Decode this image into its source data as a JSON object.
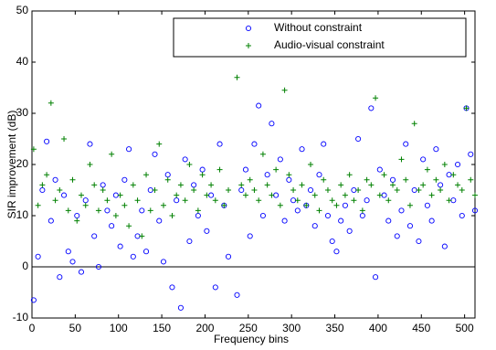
{
  "chart_data": {
    "type": "scatter",
    "x_label": "Frequency bins",
    "y_label": "SIR improvement (dB)",
    "x": [
      2,
      7,
      12,
      17,
      22,
      27,
      32,
      37,
      42,
      47,
      52,
      57,
      62,
      67,
      72,
      77,
      82,
      87,
      92,
      97,
      102,
      107,
      112,
      117,
      122,
      127,
      132,
      137,
      142,
      147,
      152,
      157,
      162,
      167,
      172,
      177,
      182,
      187,
      192,
      197,
      202,
      207,
      212,
      217,
      222,
      227,
      232,
      237,
      242,
      247,
      252,
      257,
      262,
      267,
      272,
      277,
      282,
      287,
      292,
      297,
      302,
      307,
      312,
      317,
      322,
      327,
      332,
      337,
      342,
      347,
      352,
      357,
      362,
      367,
      372,
      377,
      382,
      387,
      392,
      397,
      402,
      407,
      412,
      417,
      422,
      427,
      432,
      437,
      442,
      447,
      452,
      457,
      462,
      467,
      472,
      477,
      482,
      487,
      492,
      497,
      502,
      507,
      512
    ],
    "series": [
      {
        "name": "Without constraint",
        "color": "#0000ff",
        "marker": "circle",
        "values": [
          -6.5,
          2,
          15,
          24.5,
          9,
          17,
          -2,
          14,
          3,
          1,
          10,
          -1,
          13,
          24,
          6,
          0,
          16,
          11,
          8,
          14,
          4,
          17,
          23,
          2,
          6,
          11,
          3,
          15,
          22,
          9,
          1,
          18,
          -4,
          13,
          -8,
          21,
          5,
          16,
          10,
          19,
          7,
          14,
          -4,
          24,
          12,
          2,
          46,
          -5.5,
          15,
          19,
          6,
          24,
          31.5,
          10,
          18,
          28,
          14,
          21,
          9,
          17,
          13,
          11,
          23,
          12,
          15,
          8,
          18,
          24,
          10,
          5,
          3,
          9,
          12,
          7,
          15,
          25,
          10,
          13,
          31,
          -2,
          19,
          14,
          9,
          17,
          6,
          11,
          24,
          8,
          15,
          5,
          21,
          12,
          9,
          23,
          16,
          4,
          18,
          13,
          20,
          10,
          31,
          22,
          11
        ]
      },
      {
        "name": "Audio-visual constraint",
        "color": "#008000",
        "marker": "plus",
        "values": [
          23,
          12,
          16,
          18,
          32,
          13,
          15,
          25,
          11,
          17,
          9,
          14,
          12,
          20,
          16,
          11,
          15,
          13,
          22,
          10,
          14,
          12,
          8,
          16,
          13,
          6,
          18,
          11,
          15,
          24,
          12,
          17,
          10,
          14,
          16,
          13,
          20,
          15,
          11,
          18,
          14,
          16,
          13,
          19,
          12,
          15,
          42,
          37,
          16,
          14,
          17,
          15,
          13,
          22,
          16,
          14,
          19,
          12,
          34.5,
          18,
          15,
          13,
          16,
          12,
          20,
          14,
          11,
          17,
          15,
          13,
          12,
          16,
          14,
          18,
          13,
          15,
          11,
          17,
          16,
          33,
          14,
          18,
          13,
          16,
          15,
          21,
          17,
          12,
          28,
          15,
          16,
          19,
          14,
          17,
          15,
          20,
          13,
          18,
          16,
          15,
          31,
          17,
          14
        ]
      }
    ],
    "xlim": [
      0,
      512
    ],
    "xticks": [
      0,
      50,
      100,
      150,
      200,
      250,
      300,
      350,
      400,
      450,
      500
    ],
    "ylim": [
      -10,
      50
    ],
    "yticks": [
      -10,
      0,
      10,
      20,
      30,
      40,
      50
    ],
    "legend": "upper right"
  }
}
